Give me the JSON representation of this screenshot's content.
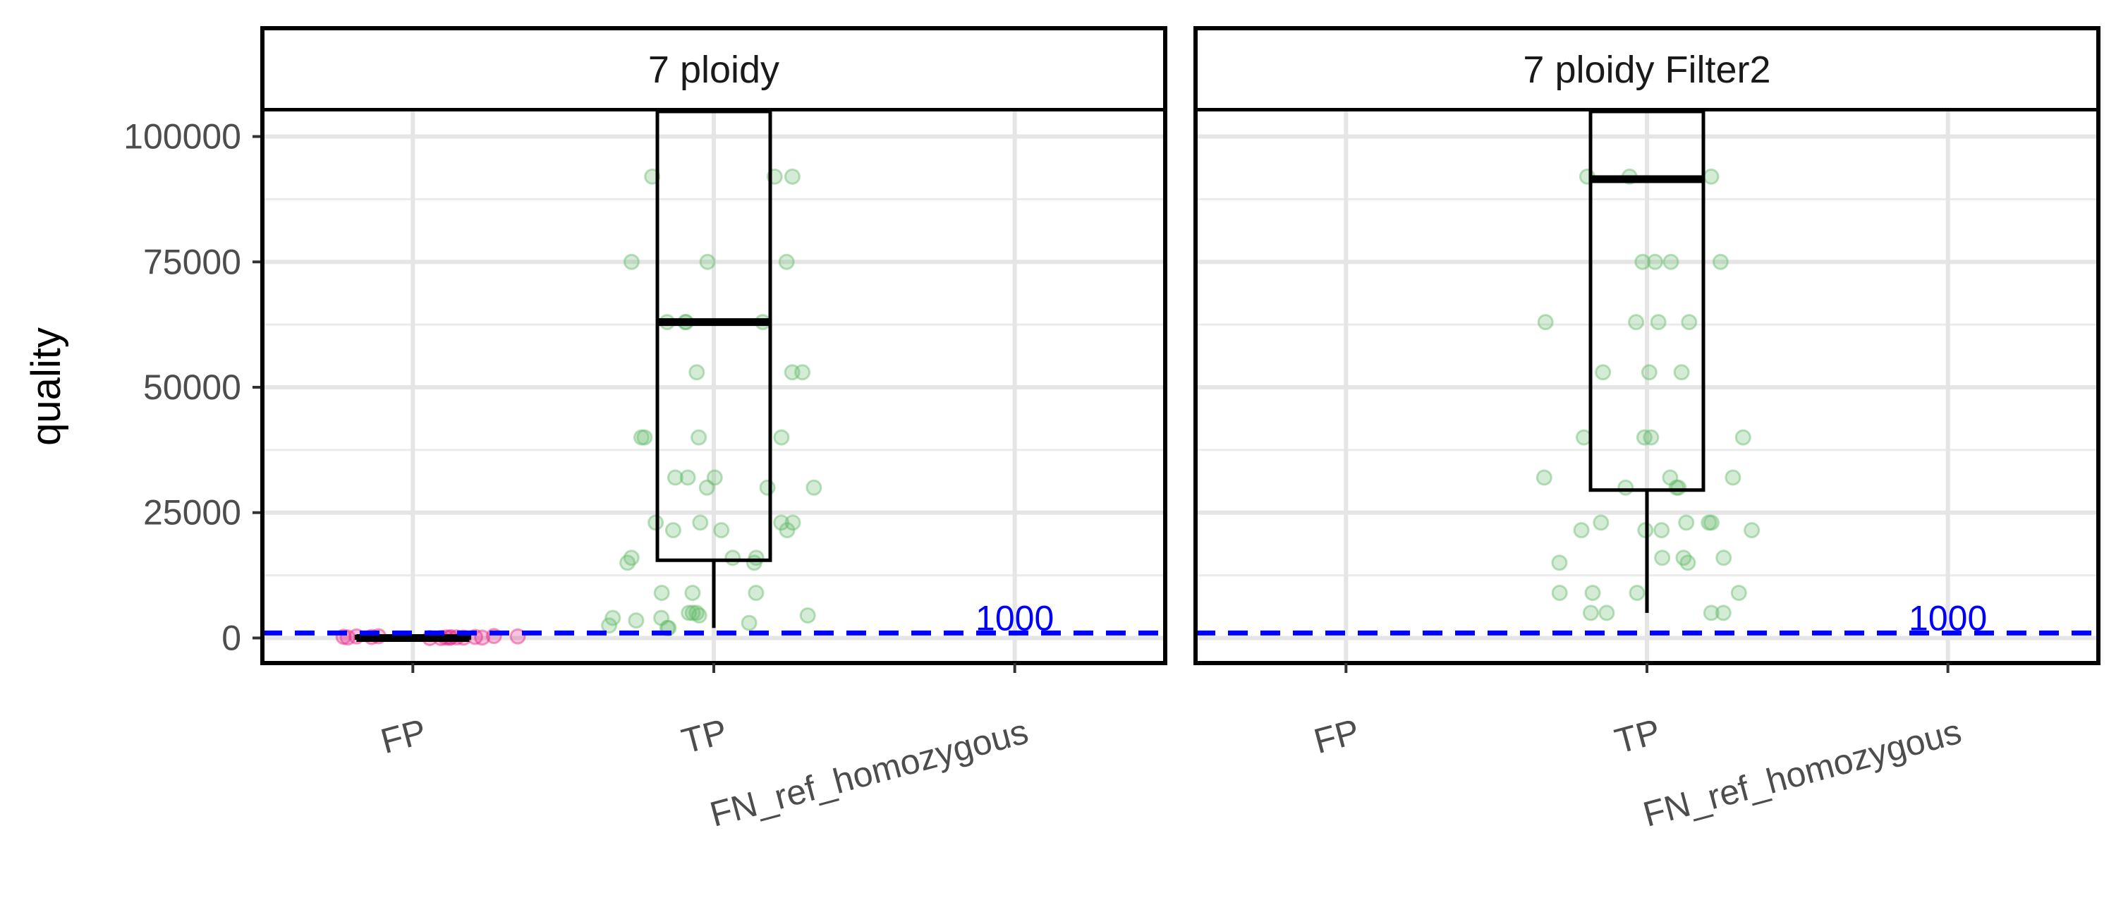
{
  "chart_data": {
    "type": "box",
    "ylabel": "quality",
    "xlabel": "",
    "categories": [
      "FP",
      "TP",
      "FN_ref_homozygous"
    ],
    "y_ticks": [
      0,
      25000,
      50000,
      75000,
      100000
    ],
    "ylim": [
      -5000,
      105000
    ],
    "grid": true,
    "legend": "none",
    "colors": {
      "FP": "#e7298a",
      "TP": "#66bb6a",
      "threshold": "#0000ff",
      "box": "#000000"
    },
    "threshold": {
      "value": 1000,
      "label": "1000",
      "style": "dashed"
    },
    "panels": [
      {
        "title": "7 ploidy",
        "boxes": [
          {
            "category": "FP",
            "q1": 0,
            "median": 0,
            "q3": 300,
            "whisker_low": 0,
            "whisker_high": 300
          },
          {
            "category": "TP",
            "q1": 15500,
            "median": 63000,
            "q3": 105000,
            "whisker_low": 2000,
            "whisker_high": 105000
          }
        ],
        "points": {
          "FP": [
            100,
            200,
            0,
            300,
            150,
            50,
            250,
            400,
            120,
            80,
            60,
            350,
            200,
            100,
            0,
            300
          ],
          "TP": [
            92000,
            92000,
            92000,
            75000,
            75000,
            75000,
            63000,
            63000,
            63000,
            63000,
            53000,
            53000,
            53000,
            40000,
            40000,
            40000,
            40000,
            32000,
            32000,
            32000,
            30000,
            30000,
            30000,
            23000,
            23000,
            23000,
            23000,
            21500,
            21500,
            21500,
            16000,
            16000,
            16000,
            15000,
            15000,
            9000,
            9000,
            9000,
            5000,
            5000,
            5000,
            4500,
            4500,
            4000,
            4000,
            3500,
            3000,
            2500,
            2000,
            2000
          ]
        }
      },
      {
        "title": "7 ploidy Filter2",
        "boxes": [
          {
            "category": "TP",
            "q1": 29500,
            "median": 91500,
            "q3": 105000,
            "whisker_low": 5000,
            "whisker_high": 105000
          }
        ],
        "points": {
          "FP": [],
          "TP": [
            92000,
            92000,
            92000,
            75000,
            75000,
            75000,
            75000,
            63000,
            63000,
            63000,
            63000,
            53000,
            53000,
            53000,
            40000,
            40000,
            40000,
            40000,
            32000,
            32000,
            32000,
            30000,
            30000,
            30000,
            23000,
            23000,
            23000,
            23000,
            21500,
            21500,
            21500,
            21500,
            16000,
            16000,
            16000,
            15000,
            15000,
            9000,
            9000,
            9000,
            9000,
            5000,
            5000,
            5000,
            5000
          ]
        }
      }
    ]
  }
}
